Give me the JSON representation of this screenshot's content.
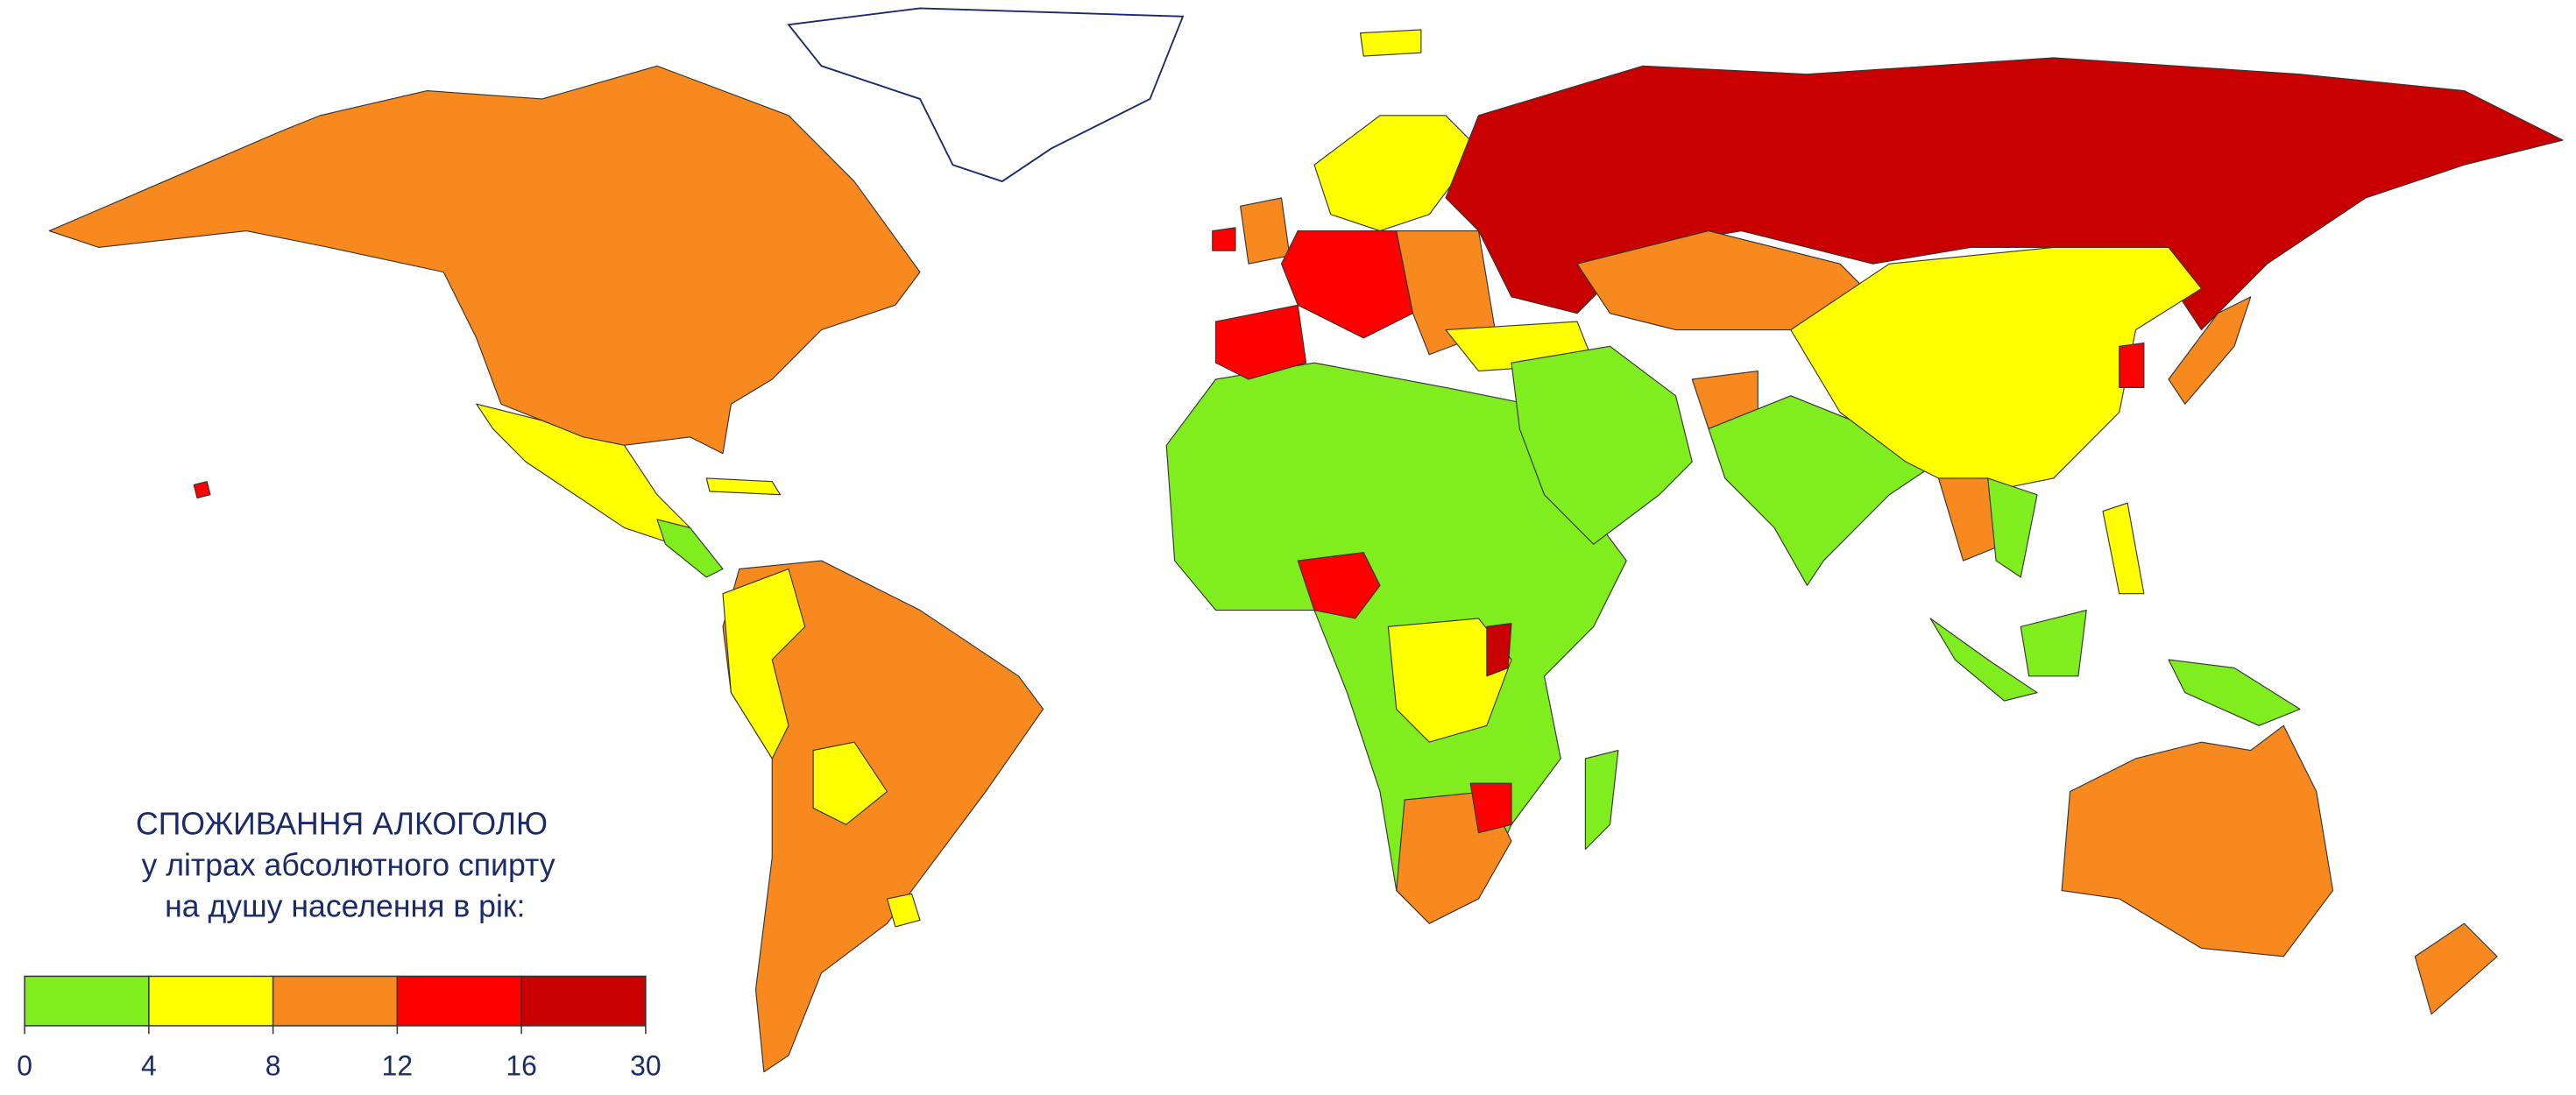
{
  "title_lines": [
    "СПОЖИВАННЯ АЛКОГОЛЮ",
    "у літрах абсолютного спирту",
    "на душу населення в рік:"
  ],
  "legend": {
    "breaks": [
      0,
      4,
      8,
      12,
      16,
      30
    ],
    "colors": [
      "#80ee1e",
      "#ffff00",
      "#f7891f",
      "#ff0000",
      "#c80000"
    ]
  }
}
